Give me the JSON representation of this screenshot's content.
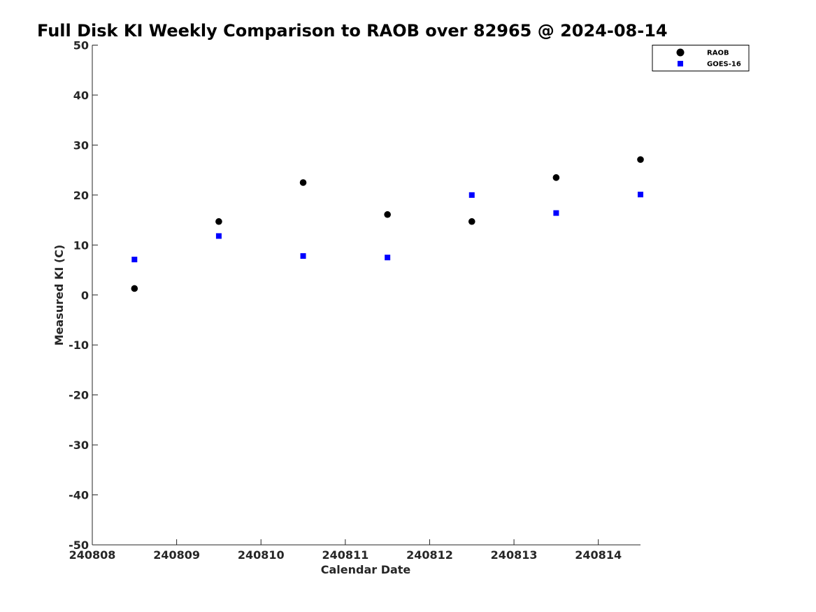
{
  "chart_data": {
    "type": "scatter",
    "title": "Full Disk KI Weekly Comparison to RAOB over 82965 @ 2024-08-14",
    "xlabel": "Calendar Date",
    "ylabel": "Measured KI (C)",
    "xlim": [
      "240808",
      "240814"
    ],
    "ylim": [
      -50,
      50
    ],
    "x_ticks": [
      "240808",
      "240809",
      "240810",
      "240811",
      "240812",
      "240813",
      "240814"
    ],
    "y_ticks": [
      "-50",
      "-40",
      "-30",
      "-20",
      "-10",
      "0",
      "10",
      "20",
      "30",
      "40",
      "50"
    ],
    "grid": false,
    "legend_position": "top-right",
    "series": [
      {
        "name": "RAOB",
        "marker": "circle",
        "color": "#000000",
        "points": [
          {
            "x": "240808 12Z",
            "y": 1.3
          },
          {
            "x": "240809 12Z",
            "y": 14.7
          },
          {
            "x": "240810 12Z",
            "y": 22.5
          },
          {
            "x": "240811 12Z",
            "y": 16.1
          },
          {
            "x": "240812 12Z",
            "y": 14.7
          },
          {
            "x": "240813 12Z",
            "y": 23.5
          },
          {
            "x": "240814 12Z",
            "y": 27.1
          }
        ]
      },
      {
        "name": "GOES-16",
        "marker": "square",
        "color": "#0000ff",
        "points": [
          {
            "x": "240808 12Z",
            "y": 7.1
          },
          {
            "x": "240809 12Z",
            "y": 11.8
          },
          {
            "x": "240810 12Z",
            "y": 7.8
          },
          {
            "x": "240811 12Z",
            "y": 7.5
          },
          {
            "x": "240812 12Z",
            "y": 20.0
          },
          {
            "x": "240813 12Z",
            "y": 16.4
          },
          {
            "x": "240814 12Z",
            "y": 20.1
          }
        ]
      }
    ]
  }
}
